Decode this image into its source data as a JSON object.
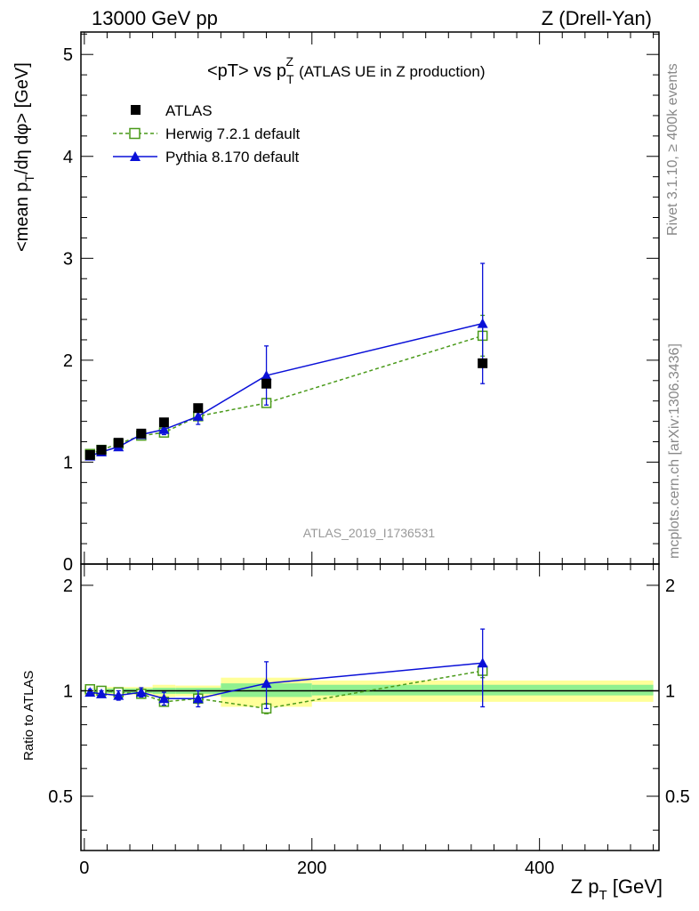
{
  "header": {
    "left": "13000 GeV pp",
    "right": "Z (Drell-Yan)"
  },
  "side_labels": {
    "rivet": "Rivet 3.1.10, ≥ 400k events",
    "mcplots": "mcplots.cern.ch [arXiv:1306.3436]"
  },
  "colors": {
    "atlas": "#000000",
    "herwig": "#4a9a1a",
    "pythia": "#0a10d8",
    "band_inner": "#90f090",
    "band_outer": "#ffff99"
  },
  "chart_data": [
    {
      "type": "line",
      "title": "<pT> vs p_T^Z",
      "title_note": "(ATLAS UE in Z production)",
      "ylabel": "<mean p_T/dη dφ> [GeV]",
      "xlabel": "",
      "watermark": "ATLAS_2019_I1736531",
      "xlim": [
        -3,
        505
      ],
      "ylim": [
        0,
        5.22
      ],
      "y_ticks": [
        "0",
        "1",
        "2",
        "3",
        "4",
        "5"
      ],
      "legend": [
        "ATLAS",
        "Herwig 7.2.1 default",
        "Pythia 8.170 default"
      ],
      "legend_position": "top-left",
      "x": [
        5,
        15,
        30,
        50,
        70,
        100,
        160,
        350
      ],
      "series": [
        {
          "name": "ATLAS",
          "marker": "filled-square",
          "values": [
            1.07,
            1.12,
            1.19,
            1.28,
            1.39,
            1.53,
            1.77,
            1.97
          ]
        },
        {
          "name": "Herwig 7.2.1 default",
          "marker": "open-square",
          "dashed": true,
          "values": [
            1.08,
            1.12,
            1.18,
            1.26,
            1.29,
            1.45,
            1.58,
            2.24
          ],
          "errors": [
            0.02,
            0.02,
            0.02,
            0.02,
            0.02,
            0.03,
            0.04,
            0.2
          ]
        },
        {
          "name": "Pythia 8.170 default",
          "marker": "filled-triangle",
          "values": [
            1.06,
            1.1,
            1.15,
            1.27,
            1.32,
            1.45,
            1.85,
            2.36
          ],
          "errors": [
            0.02,
            0.02,
            0.03,
            0.03,
            0.05,
            0.08,
            0.29,
            0.59
          ]
        }
      ]
    },
    {
      "type": "line",
      "ylabel": "Ratio to ATLAS",
      "xlabel": "Z p_T [GeV]",
      "xlim": [
        -3,
        505
      ],
      "ylim": [
        0.35,
        2.3
      ],
      "y_scale": "log",
      "y_ticks": [
        "0.5",
        "1",
        "2"
      ],
      "x_ticks": [
        "0",
        "200",
        "400"
      ],
      "bands": [
        {
          "x_from": 0,
          "x_to": 20,
          "inner": [
            0.985,
            1.015
          ],
          "outer": [
            0.97,
            1.03
          ]
        },
        {
          "x_from": 20,
          "x_to": 40,
          "inner": [
            0.985,
            1.015
          ],
          "outer": [
            0.975,
            1.025
          ]
        },
        {
          "x_from": 40,
          "x_to": 60,
          "inner": [
            0.985,
            1.015
          ],
          "outer": [
            0.975,
            1.025
          ]
        },
        {
          "x_from": 60,
          "x_to": 80,
          "inner": [
            0.98,
            1.02
          ],
          "outer": [
            0.96,
            1.04
          ]
        },
        {
          "x_from": 80,
          "x_to": 120,
          "inner": [
            0.98,
            1.02
          ],
          "outer": [
            0.965,
            1.035
          ]
        },
        {
          "x_from": 120,
          "x_to": 200,
          "inner": [
            0.96,
            1.05
          ],
          "outer": [
            0.9,
            1.09
          ]
        },
        {
          "x_from": 200,
          "x_to": 500,
          "inner": [
            0.97,
            1.04
          ],
          "outer": [
            0.93,
            1.07
          ]
        }
      ],
      "x": [
        5,
        15,
        30,
        50,
        70,
        100,
        160,
        350
      ],
      "series": [
        {
          "name": "Herwig 7.2.1 default",
          "marker": "open-square",
          "dashed": true,
          "values": [
            1.01,
            1.0,
            0.99,
            0.98,
            0.93,
            0.95,
            0.89,
            1.14
          ],
          "errors": [
            0.02,
            0.02,
            0.02,
            0.02,
            0.02,
            0.03,
            0.03,
            0.05
          ]
        },
        {
          "name": "Pythia 8.170 default",
          "marker": "filled-triangle",
          "values": [
            0.99,
            0.98,
            0.97,
            0.99,
            0.95,
            0.95,
            1.05,
            1.2
          ],
          "errors": [
            0.02,
            0.02,
            0.03,
            0.03,
            0.04,
            0.05,
            0.16,
            0.3
          ]
        }
      ]
    }
  ]
}
